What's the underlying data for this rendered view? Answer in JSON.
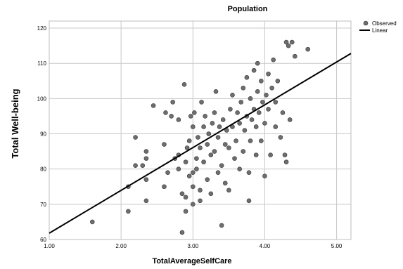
{
  "chart_data": {
    "type": "scatter",
    "title": "Population",
    "xlabel": "TotalAverageSelfCare",
    "ylabel": "Total Well-being",
    "xlim": [
      1.0,
      5.2
    ],
    "ylim": [
      60,
      122
    ],
    "x_ticks": [
      "1.00",
      "2.00",
      "3.00",
      "4.00",
      "5.00"
    ],
    "y_ticks": [
      "60",
      "70",
      "80",
      "90",
      "100",
      "110",
      "120"
    ],
    "grid": true,
    "legend": {
      "position": "top-right",
      "entries": [
        "Observed",
        "Linear"
      ]
    },
    "series": [
      {
        "name": "Observed",
        "points": [
          [
            1.6,
            65
          ],
          [
            2.1,
            68
          ],
          [
            2.1,
            75
          ],
          [
            2.2,
            81
          ],
          [
            2.2,
            89
          ],
          [
            2.3,
            81
          ],
          [
            2.35,
            71
          ],
          [
            2.35,
            77
          ],
          [
            2.35,
            83
          ],
          [
            2.35,
            85
          ],
          [
            2.45,
            98
          ],
          [
            2.6,
            75
          ],
          [
            2.6,
            87
          ],
          [
            2.62,
            96
          ],
          [
            2.65,
            79
          ],
          [
            2.7,
            95
          ],
          [
            2.72,
            99
          ],
          [
            2.75,
            83
          ],
          [
            2.8,
            80
          ],
          [
            2.8,
            84
          ],
          [
            2.8,
            94
          ],
          [
            2.85,
            62
          ],
          [
            2.85,
            73
          ],
          [
            2.88,
            104
          ],
          [
            2.9,
            68
          ],
          [
            2.9,
            72
          ],
          [
            2.9,
            82
          ],
          [
            2.92,
            86
          ],
          [
            2.95,
            78
          ],
          [
            2.95,
            88
          ],
          [
            2.97,
            95
          ],
          [
            3.0,
            70
          ],
          [
            3.0,
            75
          ],
          [
            3.0,
            79
          ],
          [
            3.0,
            92
          ],
          [
            3.02,
            96
          ],
          [
            3.05,
            80
          ],
          [
            3.05,
            83
          ],
          [
            3.07,
            89
          ],
          [
            3.1,
            71
          ],
          [
            3.1,
            74
          ],
          [
            3.1,
            86
          ],
          [
            3.12,
            99
          ],
          [
            3.15,
            82
          ],
          [
            3.15,
            92
          ],
          [
            3.17,
            95
          ],
          [
            3.2,
            77
          ],
          [
            3.2,
            87
          ],
          [
            3.22,
            90
          ],
          [
            3.25,
            73
          ],
          [
            3.25,
            84
          ],
          [
            3.27,
            93
          ],
          [
            3.3,
            85
          ],
          [
            3.3,
            96
          ],
          [
            3.32,
            102
          ],
          [
            3.35,
            79
          ],
          [
            3.35,
            89
          ],
          [
            3.37,
            92
          ],
          [
            3.4,
            64
          ],
          [
            3.4,
            81
          ],
          [
            3.42,
            94
          ],
          [
            3.45,
            76
          ],
          [
            3.45,
            87
          ],
          [
            3.47,
            91
          ],
          [
            3.5,
            74
          ],
          [
            3.5,
            86
          ],
          [
            3.52,
            97
          ],
          [
            3.55,
            92
          ],
          [
            3.55,
            101
          ],
          [
            3.58,
            83
          ],
          [
            3.6,
            88
          ],
          [
            3.62,
            96
          ],
          [
            3.65,
            80
          ],
          [
            3.65,
            93
          ],
          [
            3.67,
            99
          ],
          [
            3.7,
            85
          ],
          [
            3.7,
            103
          ],
          [
            3.72,
            91
          ],
          [
            3.75,
            95
          ],
          [
            3.75,
            106
          ],
          [
            3.78,
            71
          ],
          [
            3.78,
            79
          ],
          [
            3.8,
            88
          ],
          [
            3.8,
            100
          ],
          [
            3.82,
            94
          ],
          [
            3.85,
            97
          ],
          [
            3.85,
            108
          ],
          [
            3.88,
            84
          ],
          [
            3.88,
            92
          ],
          [
            3.9,
            102
          ],
          [
            3.9,
            110
          ],
          [
            3.92,
            96
          ],
          [
            3.95,
            88
          ],
          [
            3.95,
            105
          ],
          [
            3.97,
            99
          ],
          [
            4.0,
            78
          ],
          [
            4.0,
            93
          ],
          [
            4.02,
            101
          ],
          [
            4.05,
            97
          ],
          [
            4.05,
            107
          ],
          [
            4.08,
            84
          ],
          [
            4.1,
            103
          ],
          [
            4.12,
            111
          ],
          [
            4.15,
            92
          ],
          [
            4.15,
            99
          ],
          [
            4.18,
            105
          ],
          [
            4.22,
            89
          ],
          [
            4.25,
            96
          ],
          [
            4.28,
            84
          ],
          [
            4.3,
            82
          ],
          [
            4.3,
            116
          ],
          [
            4.33,
            115
          ],
          [
            4.35,
            94
          ],
          [
            4.38,
            116
          ],
          [
            4.42,
            112
          ],
          [
            4.6,
            114
          ]
        ]
      },
      {
        "name": "Linear",
        "fit": {
          "x": [
            1.0,
            5.2
          ],
          "y": [
            61.8,
            112.8
          ]
        }
      }
    ]
  }
}
